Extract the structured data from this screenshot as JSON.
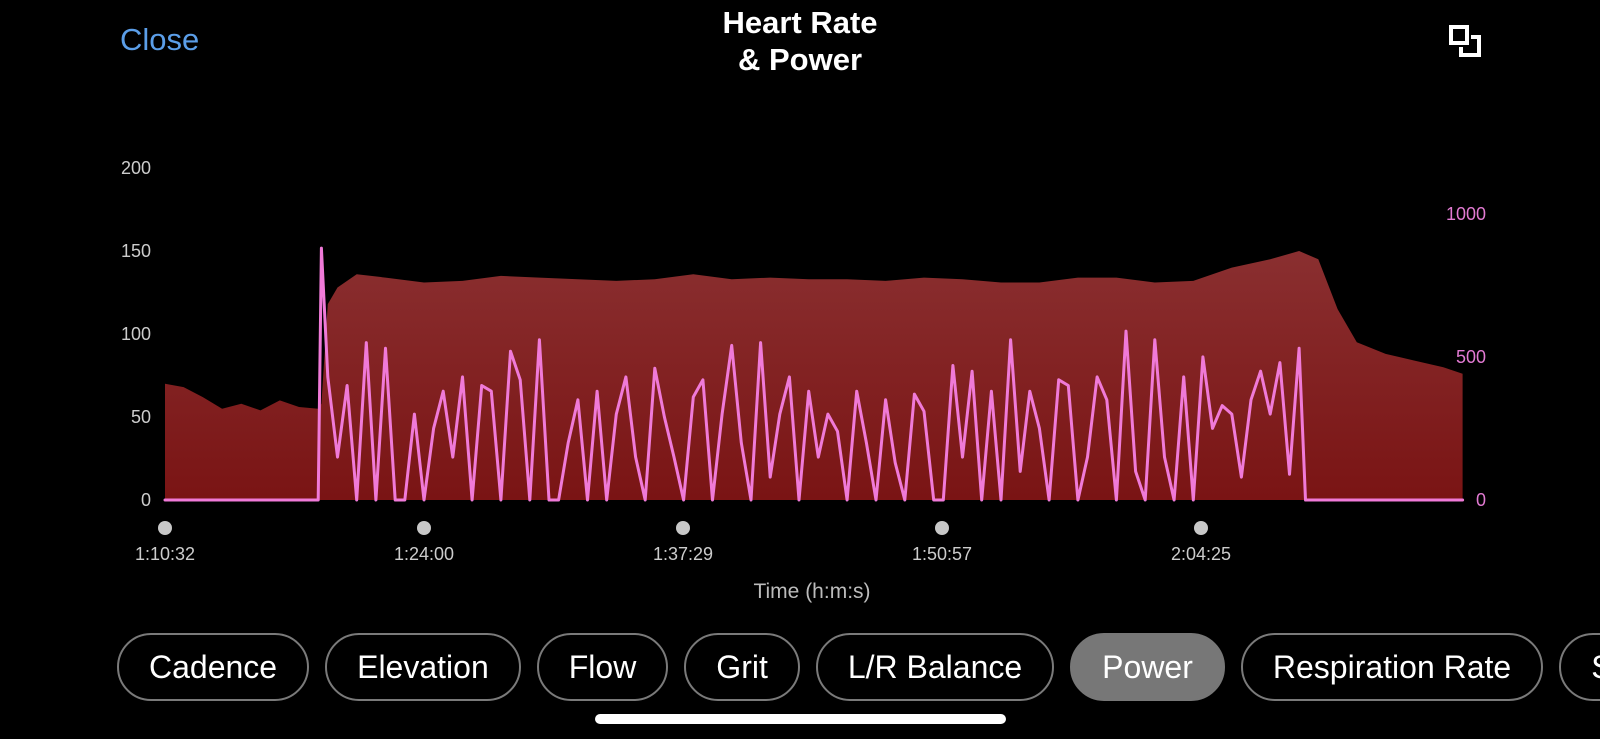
{
  "header": {
    "close_label": "Close",
    "title_line1": "Heart Rate",
    "title_line2": "& Power",
    "expand_icon": "expand-icon"
  },
  "chart_data": {
    "type": "area",
    "title": "Heart Rate & Power",
    "xlabel": "Time (h:m:s)",
    "x_ticks": [
      "1:10:32",
      "1:24:00",
      "1:37:29",
      "1:50:57",
      "2:04:25"
    ],
    "y_left": {
      "ticks": [
        0,
        50,
        100,
        150,
        200
      ],
      "ylim": [
        0,
        200
      ]
    },
    "y_right": {
      "ticks": [
        0,
        500,
        1000
      ],
      "ylim": [
        0,
        1160
      ]
    },
    "series": [
      {
        "type": "area",
        "axis": "left",
        "color": "#8b2525",
        "x": [
          "1:10:32",
          "1:11:30",
          "1:12:30",
          "1:13:30",
          "1:14:30",
          "1:15:30",
          "1:16:30",
          "1:17:30",
          "1:18:30",
          "1:18:40",
          "1:19:00",
          "1:19:30",
          "1:20:30",
          "1:22:00",
          "1:24:00",
          "1:26:00",
          "1:28:00",
          "1:30:00",
          "1:32:00",
          "1:34:00",
          "1:36:00",
          "1:38:00",
          "1:40:00",
          "1:42:00",
          "1:44:00",
          "1:46:00",
          "1:48:00",
          "1:50:00",
          "1:52:00",
          "1:54:00",
          "1:56:00",
          "1:58:00",
          "2:00:00",
          "2:02:00",
          "2:04:00",
          "2:06:00",
          "2:08:00",
          "2:09:30",
          "2:10:30",
          "2:11:30",
          "2:12:30",
          "2:14:00",
          "2:15:30",
          "2:17:00",
          "2:18:00"
        ],
        "values": [
          70,
          68,
          62,
          55,
          58,
          54,
          60,
          56,
          55,
          58,
          118,
          128,
          136,
          134,
          131,
          132,
          135,
          134,
          133,
          132,
          133,
          136,
          133,
          134,
          133,
          133,
          132,
          134,
          133,
          131,
          131,
          134,
          134,
          131,
          132,
          140,
          145,
          150,
          145,
          115,
          95,
          88,
          84,
          80,
          76
        ]
      },
      {
        "type": "line",
        "axis": "right",
        "color": "#f07ad8",
        "x": [
          "1:10:32",
          "1:18:30",
          "1:18:40",
          "1:19:00",
          "1:19:30",
          "1:20:00",
          "1:20:30",
          "1:21:00",
          "1:21:30",
          "1:22:00",
          "1:22:30",
          "1:23:00",
          "1:23:30",
          "1:24:00",
          "1:24:30",
          "1:25:00",
          "1:25:30",
          "1:26:00",
          "1:26:30",
          "1:27:00",
          "1:27:30",
          "1:28:00",
          "1:28:30",
          "1:29:00",
          "1:29:30",
          "1:30:00",
          "1:30:30",
          "1:31:00",
          "1:31:30",
          "1:32:00",
          "1:32:30",
          "1:33:00",
          "1:33:30",
          "1:34:00",
          "1:34:30",
          "1:35:00",
          "1:35:30",
          "1:36:00",
          "1:36:30",
          "1:37:00",
          "1:37:30",
          "1:38:00",
          "1:38:30",
          "1:39:00",
          "1:39:30",
          "1:40:00",
          "1:40:30",
          "1:41:00",
          "1:41:30",
          "1:42:00",
          "1:42:30",
          "1:43:00",
          "1:43:30",
          "1:44:00",
          "1:44:30",
          "1:45:00",
          "1:45:30",
          "1:46:00",
          "1:46:30",
          "1:47:00",
          "1:47:30",
          "1:48:00",
          "1:48:30",
          "1:49:00",
          "1:49:30",
          "1:50:00",
          "1:50:30",
          "1:51:00",
          "1:51:30",
          "1:52:00",
          "1:52:30",
          "1:53:00",
          "1:53:30",
          "1:54:00",
          "1:54:30",
          "1:55:00",
          "1:55:30",
          "1:56:00",
          "1:56:30",
          "1:57:00",
          "1:57:30",
          "1:58:00",
          "1:58:30",
          "1:59:00",
          "1:59:30",
          "2:00:00",
          "2:00:30",
          "2:01:00",
          "2:01:30",
          "2:02:00",
          "2:02:30",
          "2:03:00",
          "2:03:30",
          "2:04:00",
          "2:04:30",
          "2:05:00",
          "2:05:30",
          "2:06:00",
          "2:06:30",
          "2:07:00",
          "2:07:30",
          "2:08:00",
          "2:08:30",
          "2:09:00",
          "2:09:30",
          "2:09:50",
          "2:18:00"
        ],
        "values": [
          0,
          0,
          880,
          430,
          150,
          400,
          0,
          550,
          0,
          530,
          0,
          0,
          300,
          0,
          250,
          380,
          150,
          430,
          0,
          400,
          380,
          0,
          520,
          420,
          0,
          560,
          0,
          0,
          200,
          350,
          0,
          380,
          0,
          300,
          430,
          150,
          0,
          460,
          290,
          150,
          0,
          360,
          420,
          0,
          300,
          540,
          200,
          0,
          550,
          80,
          300,
          430,
          0,
          380,
          150,
          300,
          240,
          0,
          380,
          200,
          0,
          350,
          130,
          0,
          370,
          310,
          0,
          0,
          470,
          150,
          450,
          0,
          380,
          0,
          560,
          100,
          380,
          250,
          0,
          420,
          400,
          0,
          150,
          430,
          350,
          0,
          590,
          100,
          0,
          560,
          150,
          0,
          430,
          0,
          500,
          250,
          330,
          300,
          80,
          350,
          450,
          300,
          480,
          90,
          530,
          0,
          0
        ]
      }
    ]
  },
  "tabs": [
    "Cadence",
    "Elevation",
    "Flow",
    "Grit",
    "L/R Balance",
    "Power",
    "Respiration Rate",
    "S"
  ],
  "active_tab": "Power"
}
